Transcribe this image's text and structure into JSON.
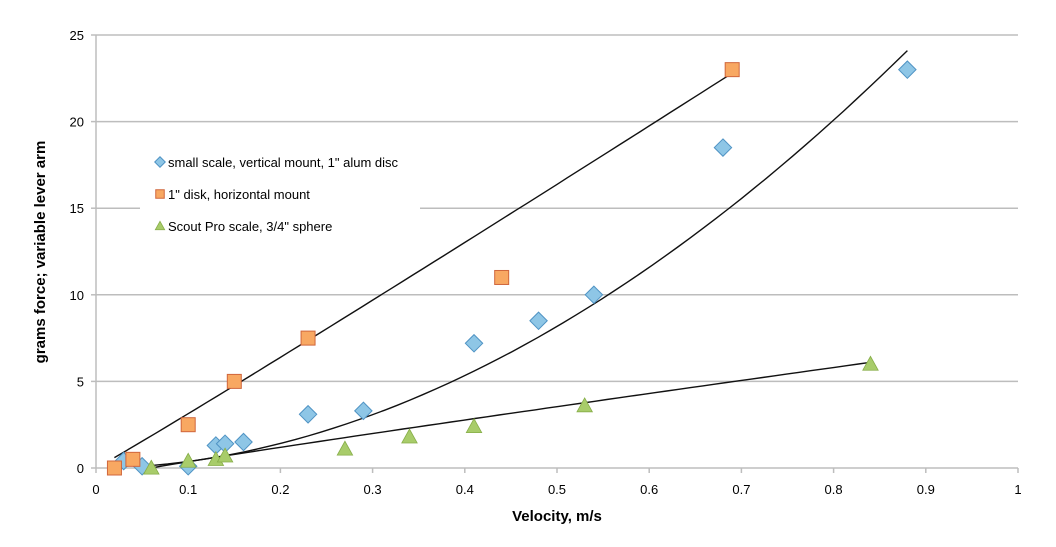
{
  "chart_data": {
    "type": "scatter",
    "title": "",
    "xlabel": "Velocity, m/s",
    "ylabel": "grams force; variable lever arm",
    "xlim": [
      0,
      1
    ],
    "ylim": [
      0,
      25
    ],
    "x_ticks": [
      "0",
      "0.1",
      "0.2",
      "0.3",
      "0.4",
      "0.5",
      "0.6",
      "0.7",
      "0.8",
      "0.9",
      "1"
    ],
    "y_ticks": [
      "0",
      "5",
      "10",
      "15",
      "20",
      "25"
    ],
    "grid": "horizontal",
    "legend_position": "top-left",
    "series": [
      {
        "name": "small scale, vertical mount, 1\" alum disc",
        "marker": "diamond",
        "color": "#8ec6e6",
        "edge_color": "#4f93c4",
        "points": [
          [
            0.03,
            0.4
          ],
          [
            0.05,
            0.1
          ],
          [
            0.1,
            0.1
          ],
          [
            0.13,
            1.3
          ],
          [
            0.14,
            1.4
          ],
          [
            0.16,
            1.5
          ],
          [
            0.23,
            3.1
          ],
          [
            0.29,
            3.3
          ],
          [
            0.41,
            7.2
          ],
          [
            0.48,
            8.5
          ],
          [
            0.54,
            10.0
          ],
          [
            0.68,
            18.5
          ],
          [
            0.88,
            23.0
          ]
        ],
        "trendline": {
          "type": "power",
          "x_range": [
            0.05,
            0.88
          ],
          "y_start": 0.1,
          "y_end": 24.1
        }
      },
      {
        "name": "1\" disk, horizontal mount",
        "marker": "square",
        "color": "#f8a862",
        "edge_color": "#d0663c",
        "points": [
          [
            0.02,
            0.0
          ],
          [
            0.04,
            0.5
          ],
          [
            0.1,
            2.5
          ],
          [
            0.15,
            5.0
          ],
          [
            0.23,
            7.5
          ],
          [
            0.44,
            11.0
          ],
          [
            0.69,
            23.0
          ]
        ],
        "trendline": {
          "type": "power",
          "x_range": [
            0.02,
            0.69
          ],
          "y_start": 0.6,
          "y_end": 22.8
        }
      },
      {
        "name": "Scout Pro scale, 3/4\" sphere",
        "marker": "triangle",
        "color": "#a8cc6a",
        "edge_color": "#86ad48",
        "points": [
          [
            0.06,
            0.0
          ],
          [
            0.1,
            0.4
          ],
          [
            0.13,
            0.5
          ],
          [
            0.14,
            0.7
          ],
          [
            0.27,
            1.1
          ],
          [
            0.34,
            1.8
          ],
          [
            0.41,
            2.4
          ],
          [
            0.53,
            3.6
          ],
          [
            0.84,
            6.0
          ]
        ],
        "trendline": {
          "type": "power",
          "x_range": [
            0.06,
            0.84
          ],
          "y_start": 0.0,
          "y_end": 6.1
        }
      }
    ]
  }
}
